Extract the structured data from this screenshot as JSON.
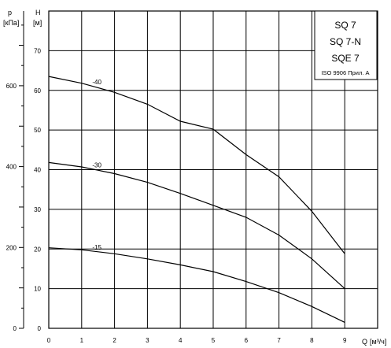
{
  "chart_data": {
    "type": "line",
    "legend_box": [
      "SQ 7",
      "SQ 7-N",
      "SQE 7",
      "ISO 9906 Прил. А"
    ],
    "x_axis": {
      "label": "Q [м³/ч]",
      "label_main": "Q",
      "label_unit": "[м³/ч]",
      "ticks": [
        "0",
        "1",
        "2",
        "3",
        "4",
        "5",
        "6",
        "7",
        "8",
        "9"
      ],
      "xlim": [
        0,
        10
      ]
    },
    "y_axis_head": {
      "label_top": "H",
      "label_unit": "[м]",
      "ticks": [
        "0",
        "10",
        "20",
        "30",
        "40",
        "50",
        "60",
        "70"
      ],
      "ylim": [
        0,
        80
      ]
    },
    "y_axis_pressure": {
      "label_top": "p",
      "label_unit": "[кПа]",
      "ticks": [
        "0",
        "200",
        "400",
        "600"
      ],
      "values": [
        0,
        200,
        400,
        600
      ]
    },
    "grid": true,
    "series": [
      {
        "name": "-40",
        "x": [
          0,
          1,
          2,
          3,
          4,
          5,
          6,
          7,
          8,
          9
        ],
        "y": [
          63.5,
          61.8,
          59.5,
          56.5,
          52.2,
          50.2,
          43.8,
          38.2,
          29.5,
          18.8
        ]
      },
      {
        "name": "-30",
        "x": [
          0,
          1,
          2,
          3,
          4,
          5,
          6,
          7,
          8,
          9
        ],
        "y": [
          41.8,
          40.7,
          39.0,
          36.8,
          34.0,
          31.0,
          28.0,
          23.5,
          17.5,
          10.0
        ]
      },
      {
        "name": "-15",
        "x": [
          0,
          1,
          2,
          3,
          4,
          5,
          6,
          7,
          8,
          9
        ],
        "y": [
          20.3,
          19.8,
          18.8,
          17.5,
          16.0,
          14.3,
          11.8,
          9.0,
          5.5,
          1.5
        ]
      }
    ]
  }
}
